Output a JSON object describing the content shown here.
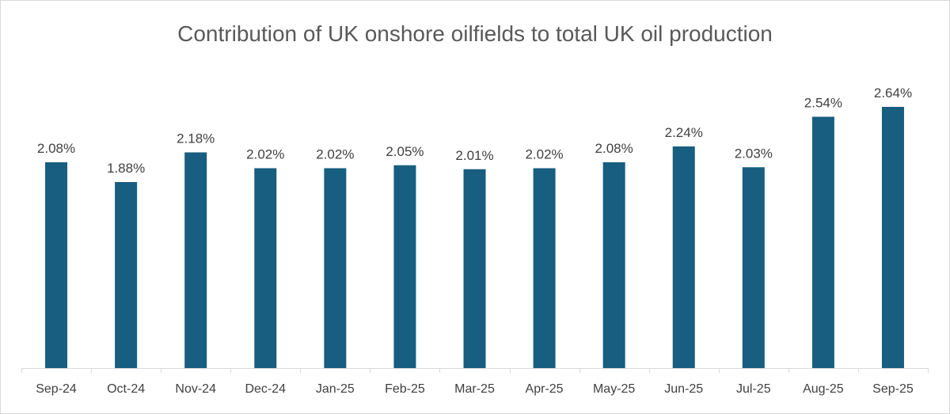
{
  "chart_data": {
    "type": "bar",
    "title": "Contribution of UK onshore oilfields to total UK oil production",
    "xlabel": "",
    "ylabel": "",
    "categories": [
      "Sep-24",
      "Oct-24",
      "Nov-24",
      "Dec-24",
      "Jan-25",
      "Feb-25",
      "Mar-25",
      "Apr-25",
      "May-25",
      "Jun-25",
      "Jul-25",
      "Aug-25",
      "Sep-25"
    ],
    "values": [
      2.08,
      1.88,
      2.18,
      2.02,
      2.02,
      2.05,
      2.01,
      2.02,
      2.08,
      2.24,
      2.03,
      2.54,
      2.64
    ],
    "data_labels": [
      "2.08%",
      "1.88%",
      "2.18%",
      "2.02%",
      "2.02%",
      "2.05%",
      "2.01%",
      "2.02%",
      "2.08%",
      "2.24%",
      "2.03%",
      "2.54%",
      "2.64%"
    ],
    "unit": "%",
    "ylim": [
      0,
      3.0
    ],
    "grid": false,
    "legend": "none",
    "bar_color": "#175e80",
    "text_color": "#404040",
    "axis_color": "#d9d9d9"
  }
}
